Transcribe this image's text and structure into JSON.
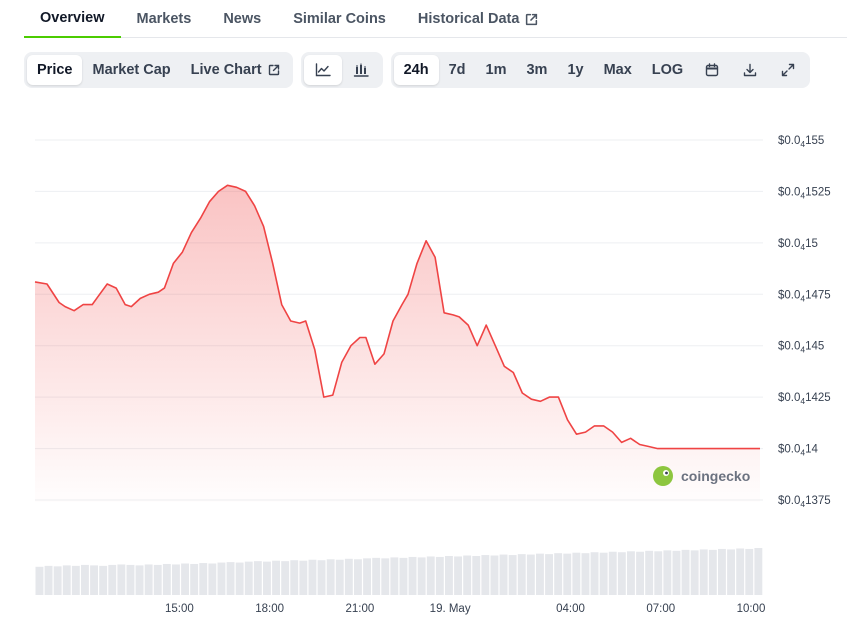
{
  "tabs": [
    {
      "label": "Overview",
      "active": true
    },
    {
      "label": "Markets"
    },
    {
      "label": "News"
    },
    {
      "label": "Similar Coins"
    },
    {
      "label": "Historical Data",
      "external": true
    }
  ],
  "toolbar": {
    "metric": [
      "Price",
      "Market Cap",
      "Live Chart"
    ],
    "chart_types": [
      "line-chart-icon",
      "candlestick-icon"
    ],
    "ranges": [
      "24h",
      "7d",
      "1m",
      "3m",
      "1y",
      "Max",
      "LOG"
    ],
    "actions": [
      "calendar-icon",
      "download-icon",
      "fullscreen-icon"
    ]
  },
  "watermark": "coingecko",
  "colors": {
    "line": "#ef4444",
    "accent": "#4bcc00",
    "volume": "#e5e7eb"
  },
  "chart_data": {
    "type": "area",
    "y_ticks": [
      {
        "value": 1.375e-05,
        "label": [
          "$0.0",
          "4",
          "1375"
        ]
      },
      {
        "value": 1.4e-05,
        "label": [
          "$0.0",
          "4",
          "14"
        ]
      },
      {
        "value": 1.425e-05,
        "label": [
          "$0.0",
          "4",
          "1425"
        ]
      },
      {
        "value": 1.45e-05,
        "label": [
          "$0.0",
          "4",
          "145"
        ]
      },
      {
        "value": 1.475e-05,
        "label": [
          "$0.0",
          "4",
          "1475"
        ]
      },
      {
        "value": 1.5e-05,
        "label": [
          "$0.0",
          "4",
          "15"
        ]
      },
      {
        "value": 1.525e-05,
        "label": [
          "$0.0",
          "4",
          "1525"
        ]
      },
      {
        "value": 1.55e-05,
        "label": [
          "$0.0",
          "4",
          "155"
        ]
      }
    ],
    "ylim": [
      1.375e-05,
      1.55e-05
    ],
    "xlim": [
      0,
      24.2
    ],
    "x_ticks": [
      {
        "label": "15:00",
        "x": 4.8
      },
      {
        "label": "18:00",
        "x": 7.8
      },
      {
        "label": "21:00",
        "x": 10.8
      },
      {
        "label": "19. May",
        "x": 13.8
      },
      {
        "label": "04:00",
        "x": 17.8
      },
      {
        "label": "07:00",
        "x": 20.8
      },
      {
        "label": "10:00",
        "x": 23.8
      }
    ],
    "series": [
      {
        "x": [
          0,
          0.4,
          0.8,
          1.0,
          1.3,
          1.6,
          1.9,
          2.1,
          2.4,
          2.7,
          3.0,
          3.2,
          3.5,
          3.8,
          4.1,
          4.3,
          4.6,
          4.9,
          5.2,
          5.5,
          5.8,
          6.1,
          6.4,
          6.7,
          7.0,
          7.3,
          7.6,
          7.9,
          8.2,
          8.5,
          8.8,
          9.0,
          9.3,
          9.6,
          9.9,
          10.2,
          10.5,
          10.8,
          11.0,
          11.3,
          11.6,
          11.9,
          12.2,
          12.4,
          12.7,
          13.0,
          13.3,
          13.6,
          13.9,
          14.1,
          14.4,
          14.7,
          15.0,
          15.3,
          15.6,
          15.9,
          16.2,
          16.5,
          16.8,
          17.1,
          17.4,
          17.7,
          18.0,
          18.3,
          18.6,
          18.9,
          19.2,
          19.5,
          19.8,
          20.1,
          20.4,
          20.7,
          21.0,
          21.3,
          21.6,
          21.9,
          22.2,
          22.5,
          22.8,
          23.1,
          23.4,
          23.7,
          24.1
        ],
        "y": [
          1.481e-05,
          1.48e-05,
          1.471e-05,
          1.469e-05,
          1.467e-05,
          1.47e-05,
          1.47e-05,
          1.474e-05,
          1.48e-05,
          1.478e-05,
          1.47e-05,
          1.469e-05,
          1.473e-05,
          1.475e-05,
          1.476e-05,
          1.478e-05,
          1.49e-05,
          1.4955e-05,
          1.505e-05,
          1.512e-05,
          1.52e-05,
          1.525e-05,
          1.528e-05,
          1.527e-05,
          1.525e-05,
          1.518e-05,
          1.508e-05,
          1.49e-05,
          1.47e-05,
          1.462e-05,
          1.461e-05,
          1.462e-05,
          1.448e-05,
          1.425e-05,
          1.426e-05,
          1.442e-05,
          1.45e-05,
          1.454e-05,
          1.454e-05,
          1.441e-05,
          1.446e-05,
          1.462e-05,
          1.47e-05,
          1.475e-05,
          1.49e-05,
          1.501e-05,
          1.493e-05,
          1.466e-05,
          1.465e-05,
          1.464e-05,
          1.46e-05,
          1.45e-05,
          1.46e-05,
          1.45e-05,
          1.44e-05,
          1.437e-05,
          1.427e-05,
          1.424e-05,
          1.423e-05,
          1.425e-05,
          1.425e-05,
          1.414e-05,
          1.407e-05,
          1.408e-05,
          1.411e-05,
          1.411e-05,
          1.408e-05,
          1.403e-05,
          1.405e-05,
          1.402e-05,
          1.401e-05,
          1.4e-05,
          1.4e-05,
          1.4e-05,
          1.4e-05,
          1.4e-05,
          1.4e-05,
          1.4e-05,
          1.4e-05,
          1.4e-05,
          1.4e-05,
          1.4e-05,
          1.4e-05
        ]
      }
    ],
    "volume_relative": [
      0.6,
      0.62,
      0.61,
      0.63,
      0.62,
      0.64,
      0.63,
      0.62,
      0.64,
      0.65,
      0.64,
      0.63,
      0.65,
      0.64,
      0.66,
      0.65,
      0.67,
      0.66,
      0.68,
      0.67,
      0.69,
      0.7,
      0.69,
      0.71,
      0.72,
      0.71,
      0.73,
      0.72,
      0.74,
      0.73,
      0.75,
      0.74,
      0.76,
      0.75,
      0.77,
      0.76,
      0.78,
      0.79,
      0.78,
      0.8,
      0.79,
      0.81,
      0.8,
      0.82,
      0.81,
      0.83,
      0.82,
      0.84,
      0.83,
      0.85,
      0.84,
      0.86,
      0.85,
      0.87,
      0.86,
      0.88,
      0.87,
      0.89,
      0.88,
      0.9,
      0.89,
      0.91,
      0.9,
      0.92,
      0.91,
      0.93,
      0.92,
      0.94,
      0.93,
      0.95,
      0.94,
      0.96,
      0.95,
      0.97,
      0.96,
      0.98,
      0.97,
      0.99,
      0.98,
      1.0
    ],
    "grid": true,
    "legend": "none"
  }
}
